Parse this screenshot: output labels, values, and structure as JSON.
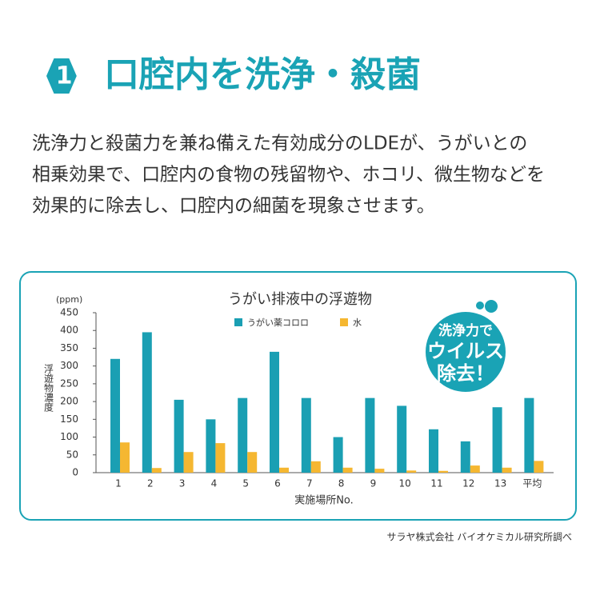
{
  "header": {
    "number": "1",
    "title": "口腔内を洗浄・殺菌"
  },
  "body": {
    "lines": [
      "洗浄力と殺菌力を兼ね備えた有効成分のLDEが、うがいとの",
      "相乗効果で、口腔内の食物の残留物や、ホコリ、微生物などを",
      "効果的に除去し、口腔内の細菌を現象させます。"
    ]
  },
  "chart_data": {
    "type": "bar",
    "title": "うがい排液中の浮遊物",
    "y_unit": "(ppm)",
    "y_label": "浮遊物濃度",
    "x_label": "実施場所No.",
    "categories": [
      "1",
      "2",
      "3",
      "4",
      "5",
      "6",
      "7",
      "8",
      "9",
      "10",
      "11",
      "12",
      "13",
      "平均"
    ],
    "series": [
      {
        "name": "うがい薬コロロ",
        "color": "#1a9fb3",
        "values": [
          320,
          395,
          205,
          150,
          210,
          340,
          210,
          100,
          210,
          188,
          122,
          88,
          184,
          210
        ]
      },
      {
        "name": "水",
        "color": "#f5b731",
        "values": [
          85,
          13,
          58,
          83,
          58,
          14,
          32,
          14,
          11,
          6,
          5,
          20,
          14,
          33
        ]
      }
    ],
    "ylim": [
      0,
      450
    ],
    "yticks": [
      0,
      50,
      100,
      150,
      200,
      250,
      300,
      350,
      400,
      450
    ]
  },
  "badge": {
    "lines": [
      "洗浄力で",
      "ウイルス",
      "除去！"
    ]
  },
  "source": "サラヤ株式会社 バイオケミカル研究所調べ"
}
